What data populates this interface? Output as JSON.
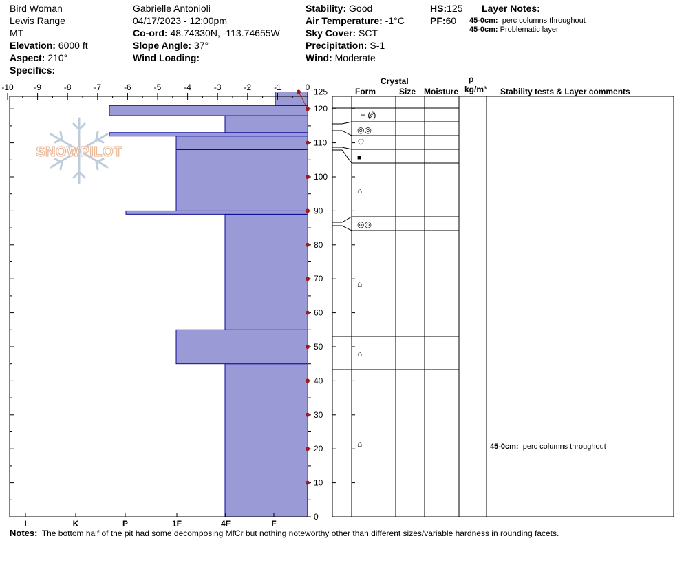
{
  "header": {
    "location": "Bird Woman",
    "range": "Lewis Range",
    "state": "MT",
    "elevation_label": "Elevation:",
    "elevation": "6000 ft",
    "aspect_label": "Aspect:",
    "aspect": "210°",
    "specifics_label": "Specifics:",
    "observer": "Gabrielle Antonioli",
    "datetime": "04/17/2023 - 12:00pm",
    "coord_label": "Co-ord:",
    "coord": "48.74330N, -113.74655W",
    "slope_label": "Slope Angle:",
    "slope": "37°",
    "wind_loading_label": "Wind Loading:",
    "stability_label": "Stability:",
    "stability": "Good",
    "air_temp_label": "Air Temperature:",
    "air_temp": "-1°C",
    "sky_label": "Sky Cover:",
    "sky": "SCT",
    "precip_label": "Precipitation:",
    "precip": "S-1",
    "wind_label": "Wind:",
    "wind": "Moderate",
    "hs_label": "HS:",
    "hs": "125",
    "pf_label": "PF:",
    "pf": "60",
    "layer_notes_label": "Layer Notes:",
    "layer_notes": [
      {
        "range": "45-0cm:",
        "text": "perc columns throughout"
      },
      {
        "range": "45-0cm:",
        "text": "Problematic layer"
      }
    ]
  },
  "logo_text": "SNOWPILOT",
  "columns": {
    "crystal": "Crystal",
    "form": "Form",
    "size": "Size",
    "moisture": "Moisture",
    "rho": "ρ",
    "density_unit": "kg/m³",
    "stability_tests": "Stability tests & Layer comments"
  },
  "layer_comment": {
    "range": "45-0cm:",
    "text": "perc columns throughout"
  },
  "notes_label": "Notes:",
  "notes": "The bottom half of the pit had some decomposing MfCr but nothing noteworthy other than different sizes/variable hardness in rounding facets.",
  "chart_data": {
    "type": "bar",
    "orientation": "horizontal",
    "title": "",
    "x_top_ticks": [
      "-10",
      "-9",
      "-8",
      "-7",
      "-6",
      "-5",
      "-4",
      "-3",
      "-2",
      "-1",
      "0"
    ],
    "x_top_range": [
      -10,
      0
    ],
    "x_bottom_ticks": [
      "I",
      "K",
      "P",
      "1F",
      "4F",
      "F"
    ],
    "y_ticks": [
      0,
      10,
      20,
      30,
      40,
      50,
      60,
      70,
      80,
      90,
      100,
      110,
      120,
      125
    ],
    "y_range": [
      0,
      125
    ],
    "hardness_layers": [
      {
        "bottom": 0,
        "top": 45,
        "hardness": "4F"
      },
      {
        "bottom": 45,
        "top": 55,
        "hardness": "1F"
      },
      {
        "bottom": 55,
        "top": 89,
        "hardness": "4F"
      },
      {
        "bottom": 89,
        "top": 90,
        "hardness": "P-"
      },
      {
        "bottom": 90,
        "top": 108,
        "hardness": "1F"
      },
      {
        "bottom": 108,
        "top": 112,
        "hardness": "1F"
      },
      {
        "bottom": 112,
        "top": 113,
        "hardness": "P"
      },
      {
        "bottom": 113,
        "top": 118,
        "hardness": "4F"
      },
      {
        "bottom": 118,
        "top": 121,
        "hardness": "P"
      },
      {
        "bottom": 121,
        "top": 125,
        "hardness": "F+"
      }
    ],
    "temperature_profile": [
      {
        "depth": 125,
        "temp": -0.3
      },
      {
        "depth": 120,
        "temp": 0
      },
      {
        "depth": 110,
        "temp": 0
      },
      {
        "depth": 100,
        "temp": 0
      },
      {
        "depth": 90,
        "temp": 0
      },
      {
        "depth": 80,
        "temp": 0
      },
      {
        "depth": 70,
        "temp": 0
      },
      {
        "depth": 60,
        "temp": 0
      },
      {
        "depth": 50,
        "temp": 0
      },
      {
        "depth": 40,
        "temp": 0
      },
      {
        "depth": 30,
        "temp": 0
      },
      {
        "depth": 20,
        "temp": 0
      },
      {
        "depth": 10,
        "temp": 0
      }
    ],
    "crystal_layers": [
      {
        "bottom": 121,
        "top": 125,
        "form": "+ (⁄⁄)"
      },
      {
        "bottom": 118,
        "top": 121,
        "form": "◎◎"
      },
      {
        "bottom": 113,
        "top": 118,
        "form": "♡"
      },
      {
        "bottom": 108,
        "top": 113,
        "form": "■"
      },
      {
        "bottom": 90,
        "top": 108,
        "form": "⌂"
      },
      {
        "bottom": 87,
        "top": 90,
        "form": "◎◎"
      },
      {
        "bottom": 55,
        "top": 87,
        "form": "⌂"
      },
      {
        "bottom": 45,
        "top": 55,
        "form": "⌂"
      },
      {
        "bottom": 0,
        "top": 45,
        "form": "⌂"
      }
    ]
  }
}
